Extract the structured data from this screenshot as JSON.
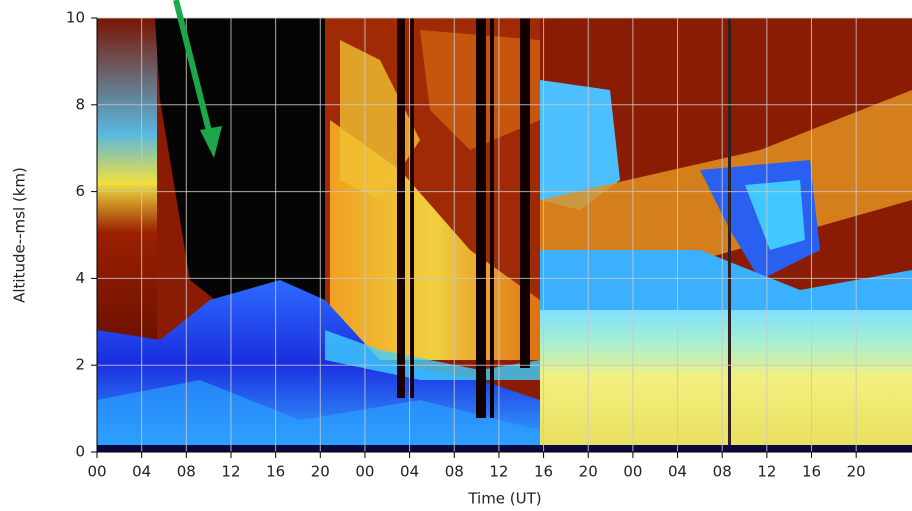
{
  "chart_data": {
    "type": "image",
    "x_label": "Time (UT)",
    "y_label": "Altitude--msl (km)",
    "xlim": [
      0,
      73
    ],
    "ylim": [
      0,
      10
    ],
    "xticks": [
      {
        "value": 0,
        "label": "00"
      },
      {
        "value": 4,
        "label": "04"
      },
      {
        "value": 8,
        "label": "08"
      },
      {
        "value": 12,
        "label": "12"
      },
      {
        "value": 16,
        "label": "16"
      },
      {
        "value": 20,
        "label": "20"
      },
      {
        "value": 24,
        "label": "00"
      },
      {
        "value": 28,
        "label": "04"
      },
      {
        "value": 32,
        "label": "08"
      },
      {
        "value": 36,
        "label": "12"
      },
      {
        "value": 40,
        "label": "16"
      },
      {
        "value": 44,
        "label": "20"
      },
      {
        "value": 48,
        "label": "00"
      },
      {
        "value": 52,
        "label": "04"
      },
      {
        "value": 56,
        "label": "08"
      },
      {
        "value": 60,
        "label": "12"
      },
      {
        "value": 64,
        "label": "16"
      },
      {
        "value": 68,
        "label": "20"
      }
    ],
    "yticks": [
      0,
      2,
      4,
      6,
      8,
      10
    ],
    "grid": true
  }
}
